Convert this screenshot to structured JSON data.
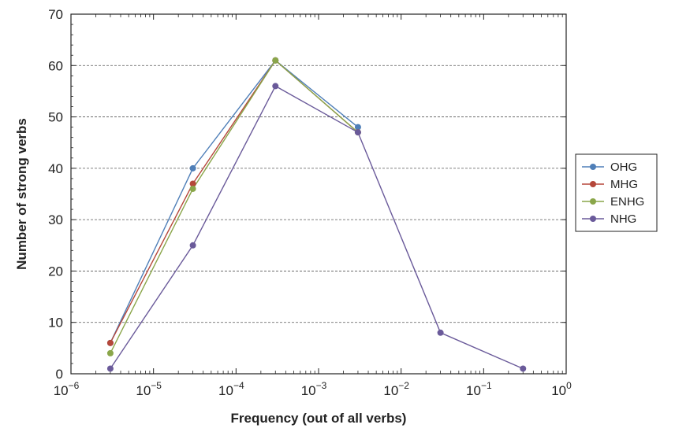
{
  "chart_data": {
    "type": "line",
    "xlabel": "Frequency (out of all verbs)",
    "ylabel": "Number of strong verbs",
    "x_scale": "log",
    "xlim": [
      1e-06,
      1
    ],
    "ylim": [
      0,
      70
    ],
    "y_ticks": [
      0,
      10,
      20,
      30,
      40,
      50,
      60,
      70
    ],
    "x_ticks": [
      {
        "value": 1e-06,
        "base": "10",
        "exp": "−6"
      },
      {
        "value": 1e-05,
        "base": "10",
        "exp": "−5"
      },
      {
        "value": 0.0001,
        "base": "10",
        "exp": "−4"
      },
      {
        "value": 0.001,
        "base": "10",
        "exp": "−3"
      },
      {
        "value": 0.01,
        "base": "10",
        "exp": "−2"
      },
      {
        "value": 0.1,
        "base": "10",
        "exp": "−1"
      },
      {
        "value": 1,
        "base": "10",
        "exp": "0"
      }
    ],
    "grid": "horizontal-dashed",
    "legend_position": "right",
    "series": [
      {
        "name": "OHG",
        "color": "#4f7fb8",
        "x": [
          3e-06,
          3e-05,
          0.0003,
          0.003
        ],
        "y": [
          6,
          40,
          61,
          48
        ]
      },
      {
        "name": "MHG",
        "color": "#b5473a",
        "x": [
          3e-06,
          3e-05,
          0.0003,
          0.003
        ],
        "y": [
          6,
          37,
          61,
          47
        ]
      },
      {
        "name": "ENHG",
        "color": "#8aa64a",
        "x": [
          3e-06,
          3e-05,
          0.0003,
          0.003
        ],
        "y": [
          4,
          36,
          61,
          47
        ]
      },
      {
        "name": "NHG",
        "color": "#6a5a9a",
        "x": [
          3e-06,
          3e-05,
          0.0003,
          0.003,
          0.03,
          0.3
        ],
        "y": [
          1,
          25,
          56,
          47,
          8,
          1
        ]
      }
    ]
  }
}
